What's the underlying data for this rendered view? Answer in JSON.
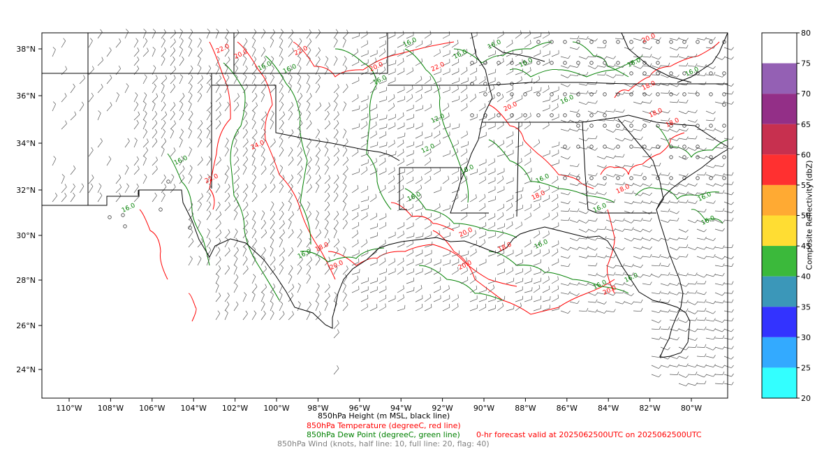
{
  "map": {
    "y_ticks": [
      "38°N",
      "36°N",
      "34°N",
      "32°N",
      "30°N",
      "28°N",
      "26°N",
      "24°N"
    ],
    "x_ticks": [
      "110°W",
      "108°W",
      "106°W",
      "104°W",
      "102°W",
      "100°W",
      "98°W",
      "96°W",
      "94°W",
      "92°W",
      "90°W",
      "88°W",
      "86°W",
      "84°W",
      "82°W",
      "80°W"
    ],
    "temp_labels": [
      "22.0",
      "20.0",
      "22.0",
      "20.0",
      "22.0",
      "20.0",
      "18.0",
      "20.0",
      "20.0",
      "18.0",
      "18.0",
      "18.0",
      "20.0",
      "18.0",
      "18.0",
      "18.0",
      "22.0",
      "24.0",
      "20.0",
      "20.0"
    ],
    "dew_labels": [
      "16.0",
      "16.0",
      "16.0",
      "16.0",
      "16.0",
      "16.0",
      "16.0",
      "16.0",
      "16.0",
      "16.0",
      "16.0",
      "16.0",
      "16.0",
      "16.0",
      "16.0",
      "12.0",
      "12.0",
      "16.0",
      "16.0",
      "16.0",
      "16.0",
      "16.0",
      "16.0",
      "16.0"
    ],
    "colors": {
      "frame": "#000000",
      "temperature_line": "#ff0000",
      "dewpoint_line": "#008000",
      "wind_barb": "#555555"
    }
  },
  "colorbar": {
    "title": "Composite Reflectivity (dbZ)",
    "ticks": [
      "80",
      "75",
      "70",
      "65",
      "60",
      "55",
      "50",
      "45",
      "40",
      "35",
      "30",
      "25",
      "20"
    ],
    "colors": [
      "#ffffff",
      "#9460b4",
      "#932f87",
      "#c7304f",
      "#ff3030",
      "#ffaa33",
      "#ffdd33",
      "#3bb93b",
      "#3b97b9",
      "#3333ff",
      "#33aaff",
      "#33ffff"
    ]
  },
  "captions": {
    "height": "850hPa Height (m MSL, black line)",
    "temperature": "850hPa Temperature (degreeC, red line)",
    "dewpoint": "850hPa Dew Point (degreeC, green line)",
    "wind": "850hPa Wind (knots, half line: 10, full line: 20, flag: 40)",
    "valid": "0-hr forecast valid at 2025062500UTC on 2025062500UTC"
  }
}
